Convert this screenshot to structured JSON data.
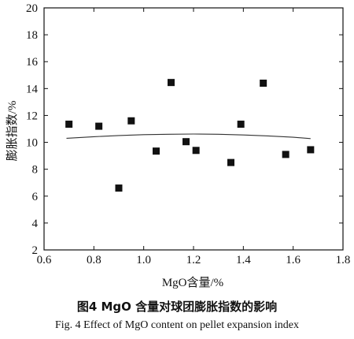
{
  "chart_data": {
    "type": "scatter",
    "xlabel": "MgO含量/%",
    "ylabel": "膨胀指数/%",
    "xlim": [
      0.6,
      1.8
    ],
    "ylim": [
      2,
      20
    ],
    "xticks": [
      "0.6",
      "0.8",
      "1.0",
      "1.2",
      "1.4",
      "1.6",
      "1.8"
    ],
    "yticks": [
      "2",
      "4",
      "6",
      "8",
      "10",
      "12",
      "14",
      "16",
      "18",
      "20"
    ],
    "points": [
      {
        "x": 0.7,
        "y": 11.35
      },
      {
        "x": 0.82,
        "y": 11.2
      },
      {
        "x": 0.9,
        "y": 6.6
      },
      {
        "x": 0.95,
        "y": 11.6
      },
      {
        "x": 1.05,
        "y": 9.35
      },
      {
        "x": 1.11,
        "y": 14.45
      },
      {
        "x": 1.17,
        "y": 10.05
      },
      {
        "x": 1.21,
        "y": 9.4
      },
      {
        "x": 1.35,
        "y": 8.5
      },
      {
        "x": 1.39,
        "y": 11.35
      },
      {
        "x": 1.48,
        "y": 14.4
      },
      {
        "x": 1.57,
        "y": 9.1
      },
      {
        "x": 1.67,
        "y": 9.45
      }
    ],
    "trend": {
      "x": [
        0.69,
        0.8,
        0.9,
        1.0,
        1.1,
        1.2,
        1.3,
        1.4,
        1.5,
        1.6,
        1.67
      ],
      "y": [
        10.3,
        10.42,
        10.51,
        10.57,
        10.6,
        10.62,
        10.6,
        10.55,
        10.48,
        10.38,
        10.28
      ]
    },
    "grid": false,
    "legend": "none"
  },
  "caption": {
    "cn": "图4    MgO 含量对球团膨胀指数的影响",
    "en": "Fig. 4    Effect of MgO content on pellet expansion index"
  }
}
